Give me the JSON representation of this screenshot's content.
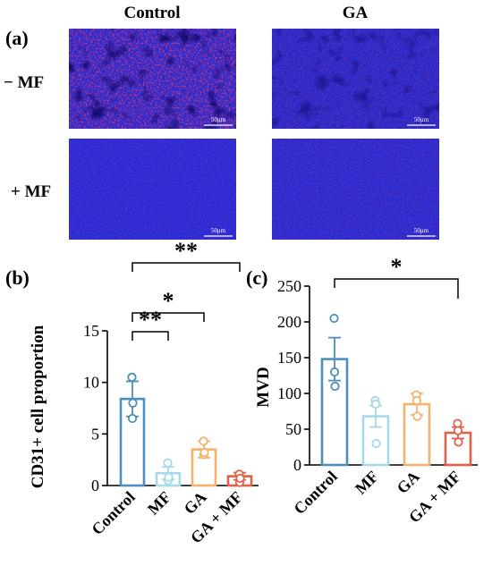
{
  "panel_a": {
    "label": "(a)",
    "columns": [
      "Control",
      "GA"
    ],
    "rows": [
      "− MF",
      "+ MF"
    ],
    "scale_bar_label": "50μm",
    "tile_colors": {
      "base": "#1a1ab8",
      "red_tint": "#c0282a"
    }
  },
  "chart_data": [
    {
      "type": "bar",
      "panel_label": "(b)",
      "categories": [
        "Control",
        "MF",
        "GA",
        "GA + MF"
      ],
      "values": [
        8.4,
        1.2,
        3.5,
        0.9
      ],
      "errors": [
        1.7,
        0.6,
        0.8,
        0.35
      ],
      "points": [
        [
          10.5,
          6.5,
          8.0
        ],
        [
          2.2,
          0.5,
          0.8
        ],
        [
          4.3,
          3.0,
          3.2
        ],
        [
          1.1,
          0.3,
          0.7
        ]
      ],
      "colors": [
        "#4c8fbd",
        "#a8d8ea",
        "#f4b26a",
        "#e0604a"
      ],
      "ylabel": "CD31+ cell proportion",
      "xlabel": "",
      "yticks": [
        0,
        5,
        10,
        15
      ],
      "ylim": [
        0,
        15
      ],
      "significance": [
        {
          "from": 0,
          "to": 1,
          "label": "**"
        },
        {
          "from": 0,
          "to": 2,
          "label": "*"
        },
        {
          "from": 0,
          "to": 3,
          "label": "**"
        }
      ]
    },
    {
      "type": "bar",
      "panel_label": "(c)",
      "categories": [
        "Control",
        "MF",
        "GA",
        "GA + MF"
      ],
      "values": [
        148,
        68,
        85,
        45
      ],
      "errors": [
        30,
        15,
        15,
        8
      ],
      "points": [
        [
          205,
          130,
          110
        ],
        [
          90,
          85,
          30
        ],
        [
          98,
          90,
          68
        ],
        [
          58,
          48,
          32
        ]
      ],
      "colors": [
        "#4c8fbd",
        "#a8d8ea",
        "#f4b26a",
        "#e0604a"
      ],
      "ylabel": "MVD",
      "xlabel": "",
      "yticks": [
        0,
        50,
        100,
        150,
        200,
        250
      ],
      "ylim": [
        0,
        250
      ],
      "significance": [
        {
          "from": 0,
          "to": 3,
          "label": "*"
        }
      ]
    }
  ]
}
